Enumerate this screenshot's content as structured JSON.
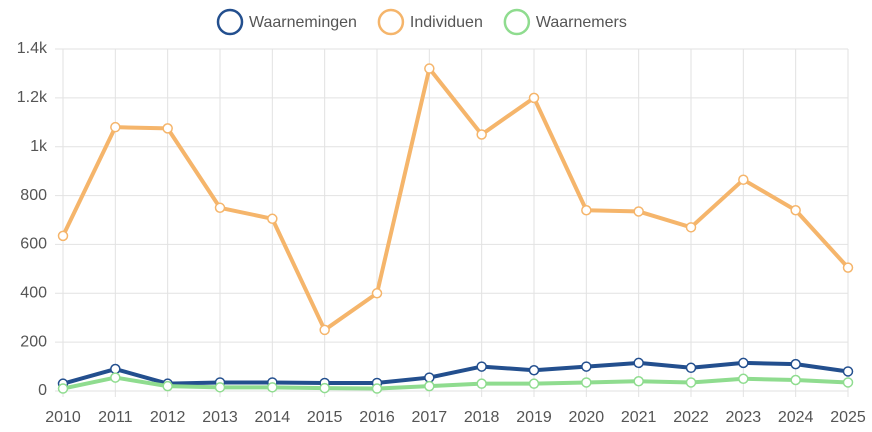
{
  "chart_data": {
    "type": "line",
    "categories": [
      "2010",
      "2011",
      "2012",
      "2013",
      "2014",
      "2015",
      "2016",
      "2017",
      "2018",
      "2019",
      "2020",
      "2021",
      "2022",
      "2023",
      "2024",
      "2025"
    ],
    "series": [
      {
        "name": "Waarnemingen",
        "color": "#234f8e",
        "values": [
          30,
          90,
          30,
          35,
          35,
          33,
          33,
          55,
          100,
          85,
          100,
          115,
          95,
          115,
          110,
          80
        ]
      },
      {
        "name": "Individuen",
        "color": "#f5b56b",
        "values": [
          635,
          1080,
          1075,
          750,
          705,
          250,
          400,
          1320,
          1050,
          1200,
          740,
          735,
          670,
          865,
          740,
          505
        ]
      },
      {
        "name": "Waarnemers",
        "color": "#8fdc8f",
        "values": [
          10,
          55,
          20,
          15,
          15,
          12,
          10,
          20,
          30,
          30,
          35,
          40,
          35,
          50,
          45,
          35
        ]
      }
    ],
    "ylim": [
      0,
      1400
    ],
    "yticks": [
      0,
      200,
      400,
      600,
      800,
      {
        "value": 1000,
        "label": "1k"
      },
      {
        "value": 1200,
        "label": "1.2k"
      },
      {
        "value": 1400,
        "label": "1.4k"
      }
    ],
    "grid": true,
    "legend": "top"
  }
}
